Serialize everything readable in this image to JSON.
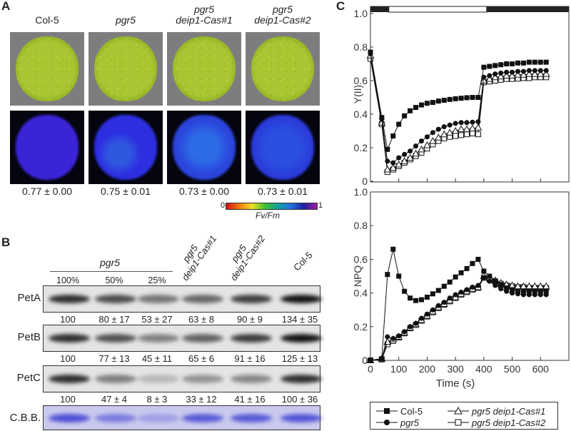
{
  "panel_a": {
    "label": "A",
    "genotypes": [
      {
        "line1": "",
        "line2": "Col-5",
        "italic": false,
        "fv_fm": "0.77 ± 0.00"
      },
      {
        "line1": "",
        "line2": "pgr5",
        "italic": true,
        "fv_fm": "0.75 ± 0.01"
      },
      {
        "line1": "pgr5",
        "line2": "deip1-Cas#1",
        "italic": true,
        "fv_fm": "0.73 ± 0.00"
      },
      {
        "line1": "pgr5",
        "line2": "deip1-Cas#2",
        "italic": true,
        "fv_fm": "0.73 ± 0.01"
      }
    ],
    "colorbar": {
      "min_label": "0",
      "max_label": "1",
      "title": "Fv/Fm"
    }
  },
  "panel_b": {
    "label": "B",
    "group_label": "pgr5",
    "lanes": [
      {
        "label": "100%"
      },
      {
        "label": "50%"
      },
      {
        "label": "25%"
      },
      {
        "line1": "pgr5",
        "line2": "deip1-Cas#1"
      },
      {
        "line1": "pgr5",
        "line2": "deip1-Cas#2"
      },
      {
        "label": "Col-5"
      }
    ],
    "blots": [
      {
        "name": "PetA",
        "values": [
          "100",
          "80 ± 17",
          "53 ± 27",
          "63 ± 8",
          "90 ± 9",
          "134 ± 35"
        ],
        "intensity": [
          100,
          80,
          53,
          63,
          90,
          134
        ]
      },
      {
        "name": "PetB",
        "values": [
          "100",
          "77 ± 13",
          "45 ± 11",
          "65 ± 6",
          "91 ± 16",
          "125 ± 13"
        ],
        "intensity": [
          100,
          77,
          45,
          65,
          91,
          125
        ]
      },
      {
        "name": "PetC",
        "values": [
          "100",
          "47 ± 4",
          "8 ± 3",
          "33 ± 12",
          "41 ± 16",
          "100 ± 36"
        ],
        "intensity": [
          100,
          47,
          8,
          33,
          41,
          100
        ]
      },
      {
        "name": "C.B.B.",
        "values": [],
        "intensity": [
          100,
          55,
          20,
          90,
          90,
          95
        ]
      }
    ]
  },
  "panel_c": {
    "label": "C"
  },
  "chart_data": [
    {
      "type": "line",
      "ylabel": "Y(II)",
      "xlabel": "",
      "xlim": [
        0,
        700
      ],
      "ylim": [
        0,
        1.0
      ],
      "yticks": [
        "0",
        "0.2",
        "0.4",
        "0.6",
        "0.8",
        "1.0"
      ],
      "xticks": [
        100,
        200,
        300,
        400,
        500,
        600
      ],
      "light_bar": {
        "dark_before": [
          0,
          65
        ],
        "light": [
          65,
          410
        ],
        "dark_after": [
          410,
          700
        ]
      },
      "x": [
        0,
        40,
        60,
        80,
        100,
        120,
        140,
        160,
        180,
        200,
        220,
        240,
        260,
        280,
        300,
        320,
        340,
        360,
        380,
        400,
        420,
        440,
        460,
        480,
        500,
        520,
        540,
        560,
        580,
        600,
        620
      ],
      "series": [
        {
          "name": "Col-5",
          "marker": "filled-square",
          "values": [
            0.77,
            0.38,
            0.19,
            0.27,
            0.34,
            0.39,
            0.42,
            0.44,
            0.455,
            0.465,
            0.47,
            0.478,
            0.483,
            0.488,
            0.492,
            0.495,
            0.498,
            0.5,
            0.5,
            0.68,
            0.685,
            0.69,
            0.695,
            0.7,
            0.7,
            0.705,
            0.705,
            0.71,
            0.71,
            0.71,
            0.71
          ]
        },
        {
          "name": "pgr5",
          "marker": "filled-circle",
          "values": [
            0.76,
            0.37,
            0.12,
            0.11,
            0.14,
            0.16,
            0.18,
            0.21,
            0.24,
            0.265,
            0.29,
            0.31,
            0.325,
            0.335,
            0.345,
            0.35,
            0.35,
            0.352,
            0.355,
            0.62,
            0.63,
            0.64,
            0.645,
            0.65,
            0.65,
            0.655,
            0.655,
            0.66,
            0.66,
            0.66,
            0.66
          ]
        },
        {
          "name": "pgr5 deip1-Cas#1",
          "marker": "open-triangle",
          "values": [
            0.75,
            0.35,
            0.07,
            0.08,
            0.1,
            0.12,
            0.14,
            0.165,
            0.19,
            0.215,
            0.24,
            0.26,
            0.28,
            0.29,
            0.3,
            0.31,
            0.31,
            0.315,
            0.32,
            0.6,
            0.61,
            0.62,
            0.625,
            0.63,
            0.63,
            0.635,
            0.635,
            0.64,
            0.64,
            0.64,
            0.64
          ]
        },
        {
          "name": "pgr5 deip1-Cas#2",
          "marker": "open-square",
          "values": [
            0.73,
            0.34,
            0.055,
            0.07,
            0.09,
            0.11,
            0.13,
            0.15,
            0.17,
            0.195,
            0.22,
            0.24,
            0.255,
            0.265,
            0.27,
            0.275,
            0.28,
            0.285,
            0.28,
            0.59,
            0.595,
            0.6,
            0.605,
            0.61,
            0.61,
            0.612,
            0.615,
            0.615,
            0.62,
            0.62,
            0.62
          ]
        }
      ]
    },
    {
      "type": "line",
      "ylabel": "NPQ",
      "xlabel": "Time (s)",
      "xlim": [
        0,
        700
      ],
      "ylim": [
        0,
        1.0
      ],
      "yticks": [
        "0",
        "0.2",
        "0.4",
        "0.6",
        "0.8",
        "1.0"
      ],
      "xticks": [
        "0",
        "100",
        "200",
        "300",
        "400",
        "500",
        "600"
      ],
      "x": [
        0,
        40,
        60,
        80,
        100,
        120,
        140,
        160,
        180,
        200,
        220,
        240,
        260,
        280,
        300,
        320,
        340,
        360,
        380,
        400,
        420,
        440,
        460,
        480,
        500,
        520,
        540,
        560,
        580,
        600,
        620
      ],
      "series": [
        {
          "name": "Col-5",
          "marker": "filled-square",
          "values": [
            0,
            0.01,
            0.51,
            0.66,
            0.5,
            0.41,
            0.37,
            0.355,
            0.36,
            0.375,
            0.395,
            0.415,
            0.44,
            0.465,
            0.495,
            0.52,
            0.545,
            0.575,
            0.6,
            0.53,
            0.5,
            0.47,
            0.45,
            0.43,
            0.42,
            0.41,
            0.41,
            0.41,
            0.41,
            0.41,
            0.41
          ]
        },
        {
          "name": "pgr5",
          "marker": "filled-circle",
          "values": [
            0,
            0.01,
            0.14,
            0.13,
            0.145,
            0.17,
            0.2,
            0.22,
            0.25,
            0.275,
            0.3,
            0.325,
            0.345,
            0.37,
            0.39,
            0.405,
            0.42,
            0.435,
            0.445,
            0.49,
            0.47,
            0.445,
            0.425,
            0.41,
            0.4,
            0.395,
            0.39,
            0.39,
            0.39,
            0.39,
            0.39
          ]
        },
        {
          "name": "pgr5 deip1-Cas#1",
          "marker": "open-triangle",
          "values": [
            0,
            0.01,
            0.11,
            0.125,
            0.14,
            0.165,
            0.195,
            0.215,
            0.24,
            0.265,
            0.29,
            0.315,
            0.335,
            0.355,
            0.375,
            0.395,
            0.41,
            0.425,
            0.435,
            0.5,
            0.49,
            0.475,
            0.46,
            0.45,
            0.445,
            0.44,
            0.44,
            0.44,
            0.44,
            0.44,
            0.44
          ]
        },
        {
          "name": "pgr5 deip1-Cas#2",
          "marker": "open-square",
          "values": [
            0,
            0.005,
            0.095,
            0.115,
            0.135,
            0.16,
            0.19,
            0.21,
            0.235,
            0.26,
            0.285,
            0.31,
            0.33,
            0.35,
            0.37,
            0.39,
            0.405,
            0.42,
            0.43,
            0.49,
            0.48,
            0.47,
            0.455,
            0.445,
            0.44,
            0.435,
            0.435,
            0.43,
            0.43,
            0.43,
            0.43
          ]
        }
      ]
    }
  ],
  "legend": {
    "placement": "bottom",
    "items": [
      {
        "label": "Col-5",
        "marker": "filled-square",
        "italic": false
      },
      {
        "label": "pgr5 deip1-Cas#1",
        "marker": "open-triangle",
        "italic": true
      },
      {
        "label": "pgr5",
        "marker": "filled-circle",
        "italic": true
      },
      {
        "label": "pgr5 deip1-Cas#2",
        "marker": "open-square",
        "italic": true
      }
    ]
  }
}
